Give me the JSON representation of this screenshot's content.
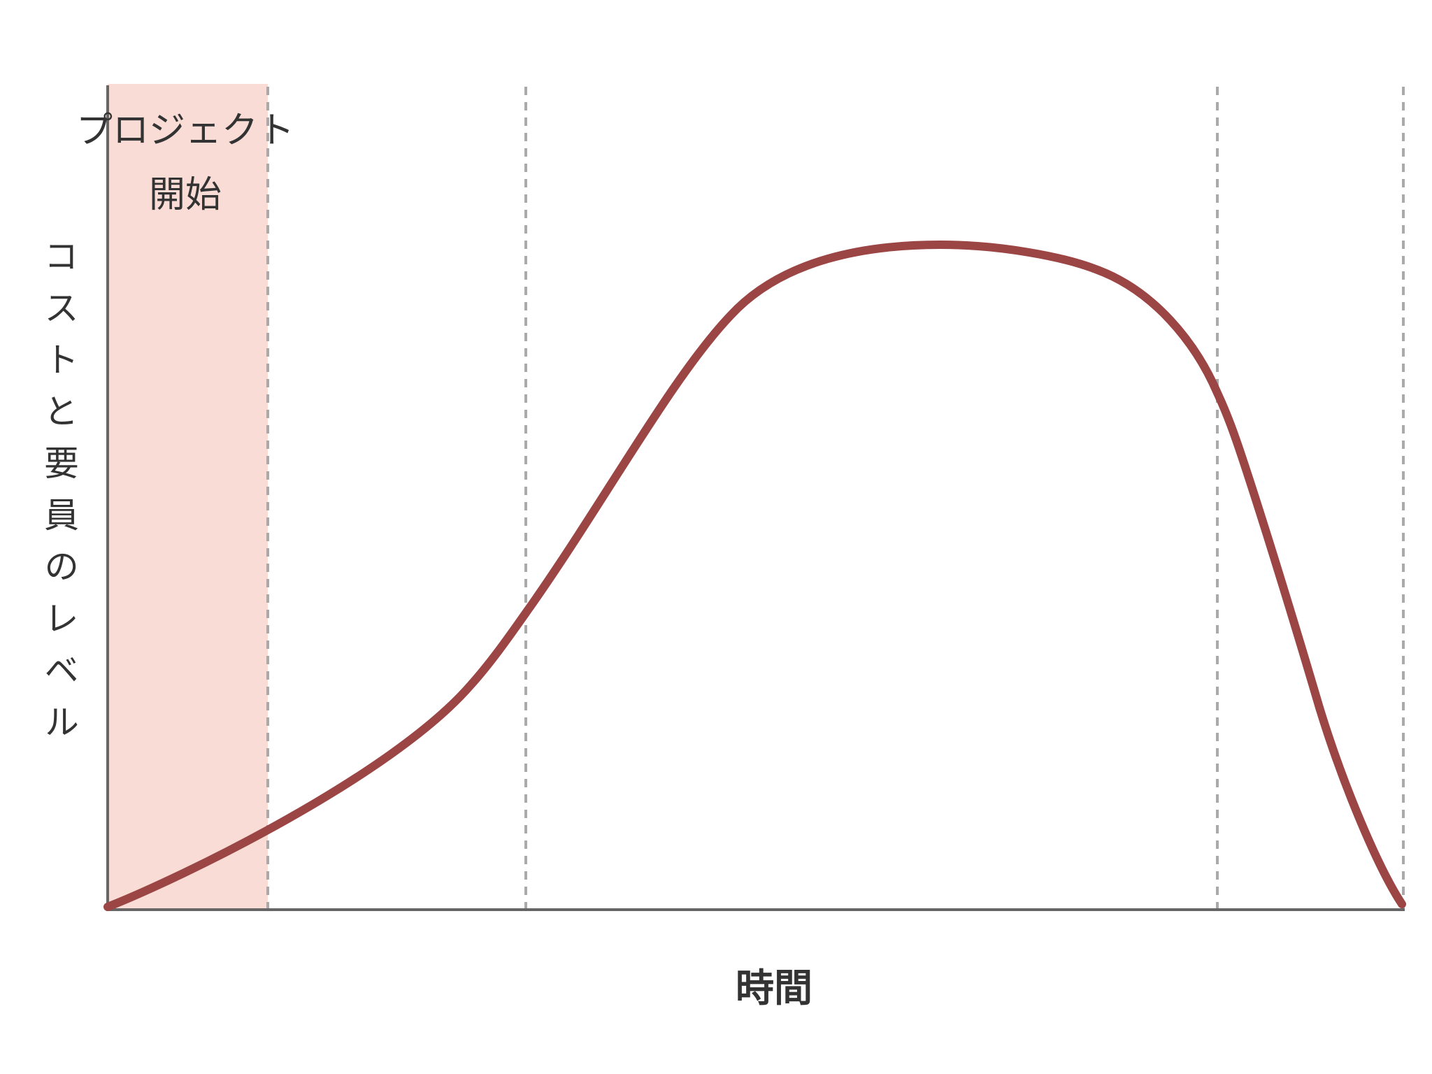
{
  "diagram": {
    "start_label": {
      "line1": "プロジェクト",
      "line2": "開始"
    },
    "y_axis_label": "コストと要員のレベル",
    "x_axis_label": "時間"
  }
}
